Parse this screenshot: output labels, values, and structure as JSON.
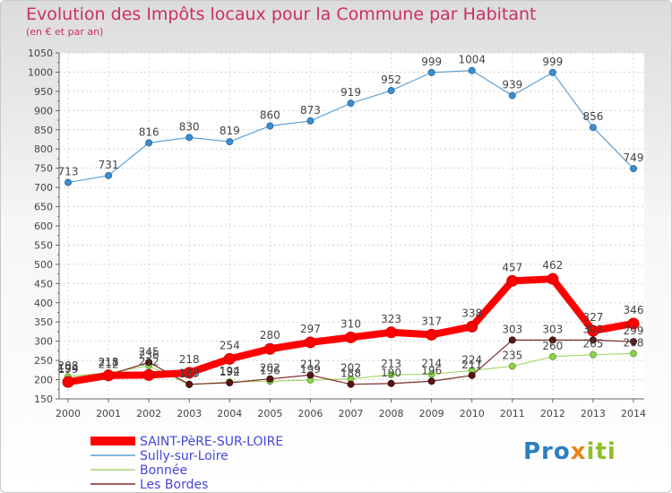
{
  "title": "Evolution des Impôts locaux pour la Commune par Habitant",
  "subtitle": "(en € et par an)",
  "logo": {
    "p1": "Pro",
    "p2": "x",
    "p3": "iti"
  },
  "chart_data": {
    "type": "line",
    "x": [
      2000,
      2001,
      2002,
      2003,
      2004,
      2005,
      2006,
      2007,
      2008,
      2009,
      2010,
      2011,
      2012,
      2013,
      2014
    ],
    "ylim": [
      150,
      1050
    ],
    "yticks": [
      150,
      200,
      250,
      300,
      350,
      400,
      450,
      500,
      550,
      600,
      650,
      700,
      750,
      800,
      850,
      900,
      950,
      1000,
      1050
    ],
    "grid": true,
    "legend_position": "bottom-left",
    "series": [
      {
        "name": "SAINT-PèRE-SUR-LOIRE",
        "color": "#ff0000",
        "values": [
          194,
          211,
          212,
          218,
          254,
          280,
          297,
          310,
          323,
          317,
          338,
          457,
          462,
          327,
          346
        ]
      },
      {
        "name": "Sully-sur-Loire",
        "color": "#5f9fd4",
        "values": [
          713,
          731,
          816,
          830,
          819,
          860,
          873,
          919,
          952,
          999,
          1004,
          939,
          999,
          856,
          749
        ]
      },
      {
        "name": "Bonnée",
        "color": "#a6d96a",
        "values": [
          208,
          218,
          236,
          187,
          194,
          196,
          199,
          202,
          213,
          214,
          224,
          235,
          260,
          265,
          268
        ]
      },
      {
        "name": "Les Bordes",
        "color": "#7b2b2b",
        "values": [
          199,
          212,
          245,
          188,
          192,
          202,
          212,
          188,
          190,
          196,
          211,
          303,
          303,
          303,
          299
        ]
      }
    ],
    "labels": [
      {
        "series": 0,
        "text": [
          "194",
          "211",
          "212",
          "218",
          "254",
          "280",
          "297",
          "310",
          "323",
          "317",
          "338",
          "457",
          "462",
          "327",
          "346"
        ]
      },
      {
        "series": 1,
        "text": [
          "713",
          "731",
          "816",
          "830",
          "819",
          "860",
          "873",
          "919",
          "952",
          "999",
          "1004",
          "939",
          "999",
          "856",
          "749"
        ]
      },
      {
        "series": 2,
        "text": [
          "208",
          "218",
          "236",
          "187",
          "194",
          "196",
          "199",
          "202",
          "213",
          "214",
          "224",
          "235",
          "260",
          "265",
          "268"
        ]
      },
      {
        "series": 3,
        "text": [
          "199",
          "212",
          "245",
          "188",
          "192",
          "202",
          "212",
          "188",
          "190",
          "196",
          "211",
          "303",
          "303",
          "303",
          "299"
        ]
      }
    ]
  }
}
